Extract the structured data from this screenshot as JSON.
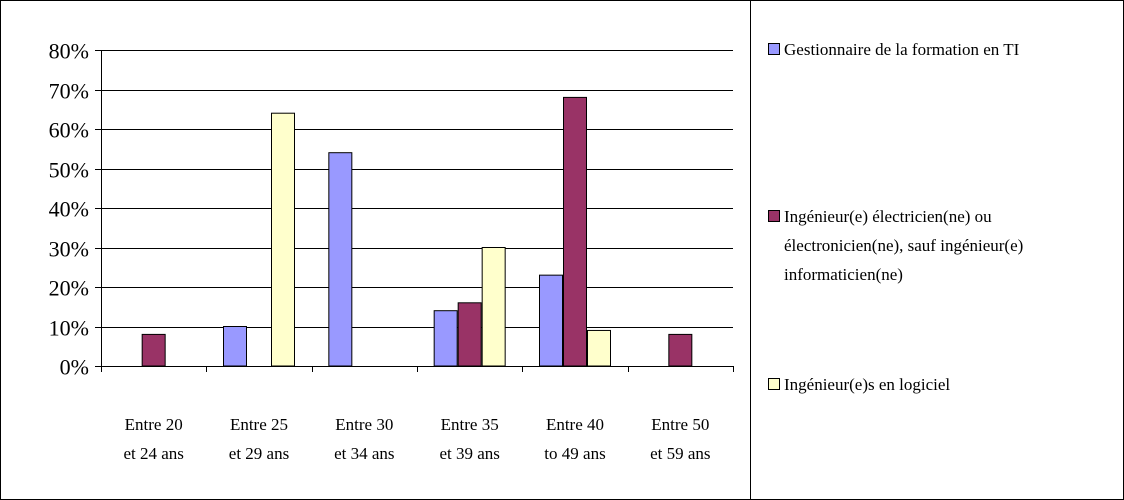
{
  "chart_data": {
    "type": "bar",
    "categories": [
      [
        "Entre 20",
        "et 24 ans"
      ],
      [
        "Entre 25",
        "et 29 ans"
      ],
      [
        "Entre 30",
        "et 34 ans"
      ],
      [
        "Entre 35",
        "et 39 ans"
      ],
      [
        "Entre 40",
        "to 49 ans"
      ],
      [
        "Entre 50",
        "et 59 ans"
      ]
    ],
    "series": [
      {
        "name": "Gestionnaire de la formation en TI",
        "name_lines": [
          "Gestionnaire de la formation en TI"
        ],
        "color": "#9999ff",
        "values": [
          null,
          10,
          54,
          14,
          23,
          null
        ]
      },
      {
        "name": "Ingénieur(e) électricien(ne) ou électronicien(ne), sauf ingénieur(e) informaticien(ne)",
        "name_lines": [
          "Ingénieur(e) électricien(ne) ou",
          "électronicien(ne), sauf ingénieur(e)",
          "informaticien(ne)"
        ],
        "color": "#993366",
        "values": [
          8,
          null,
          null,
          16,
          68,
          8
        ]
      },
      {
        "name": "Ingénieur(e)s en logiciel",
        "name_lines": [
          "Ingénieur(e)s en logiciel"
        ],
        "color": "#ffffcc",
        "values": [
          null,
          64,
          null,
          30,
          9,
          null
        ]
      }
    ],
    "ylim": [
      0,
      80
    ],
    "yticks": [
      0,
      10,
      20,
      30,
      40,
      50,
      60,
      70,
      80
    ],
    "ytick_suffix": "%",
    "grid": true,
    "legend_position": "right",
    "title": "",
    "xlabel": "",
    "ylabel": ""
  }
}
